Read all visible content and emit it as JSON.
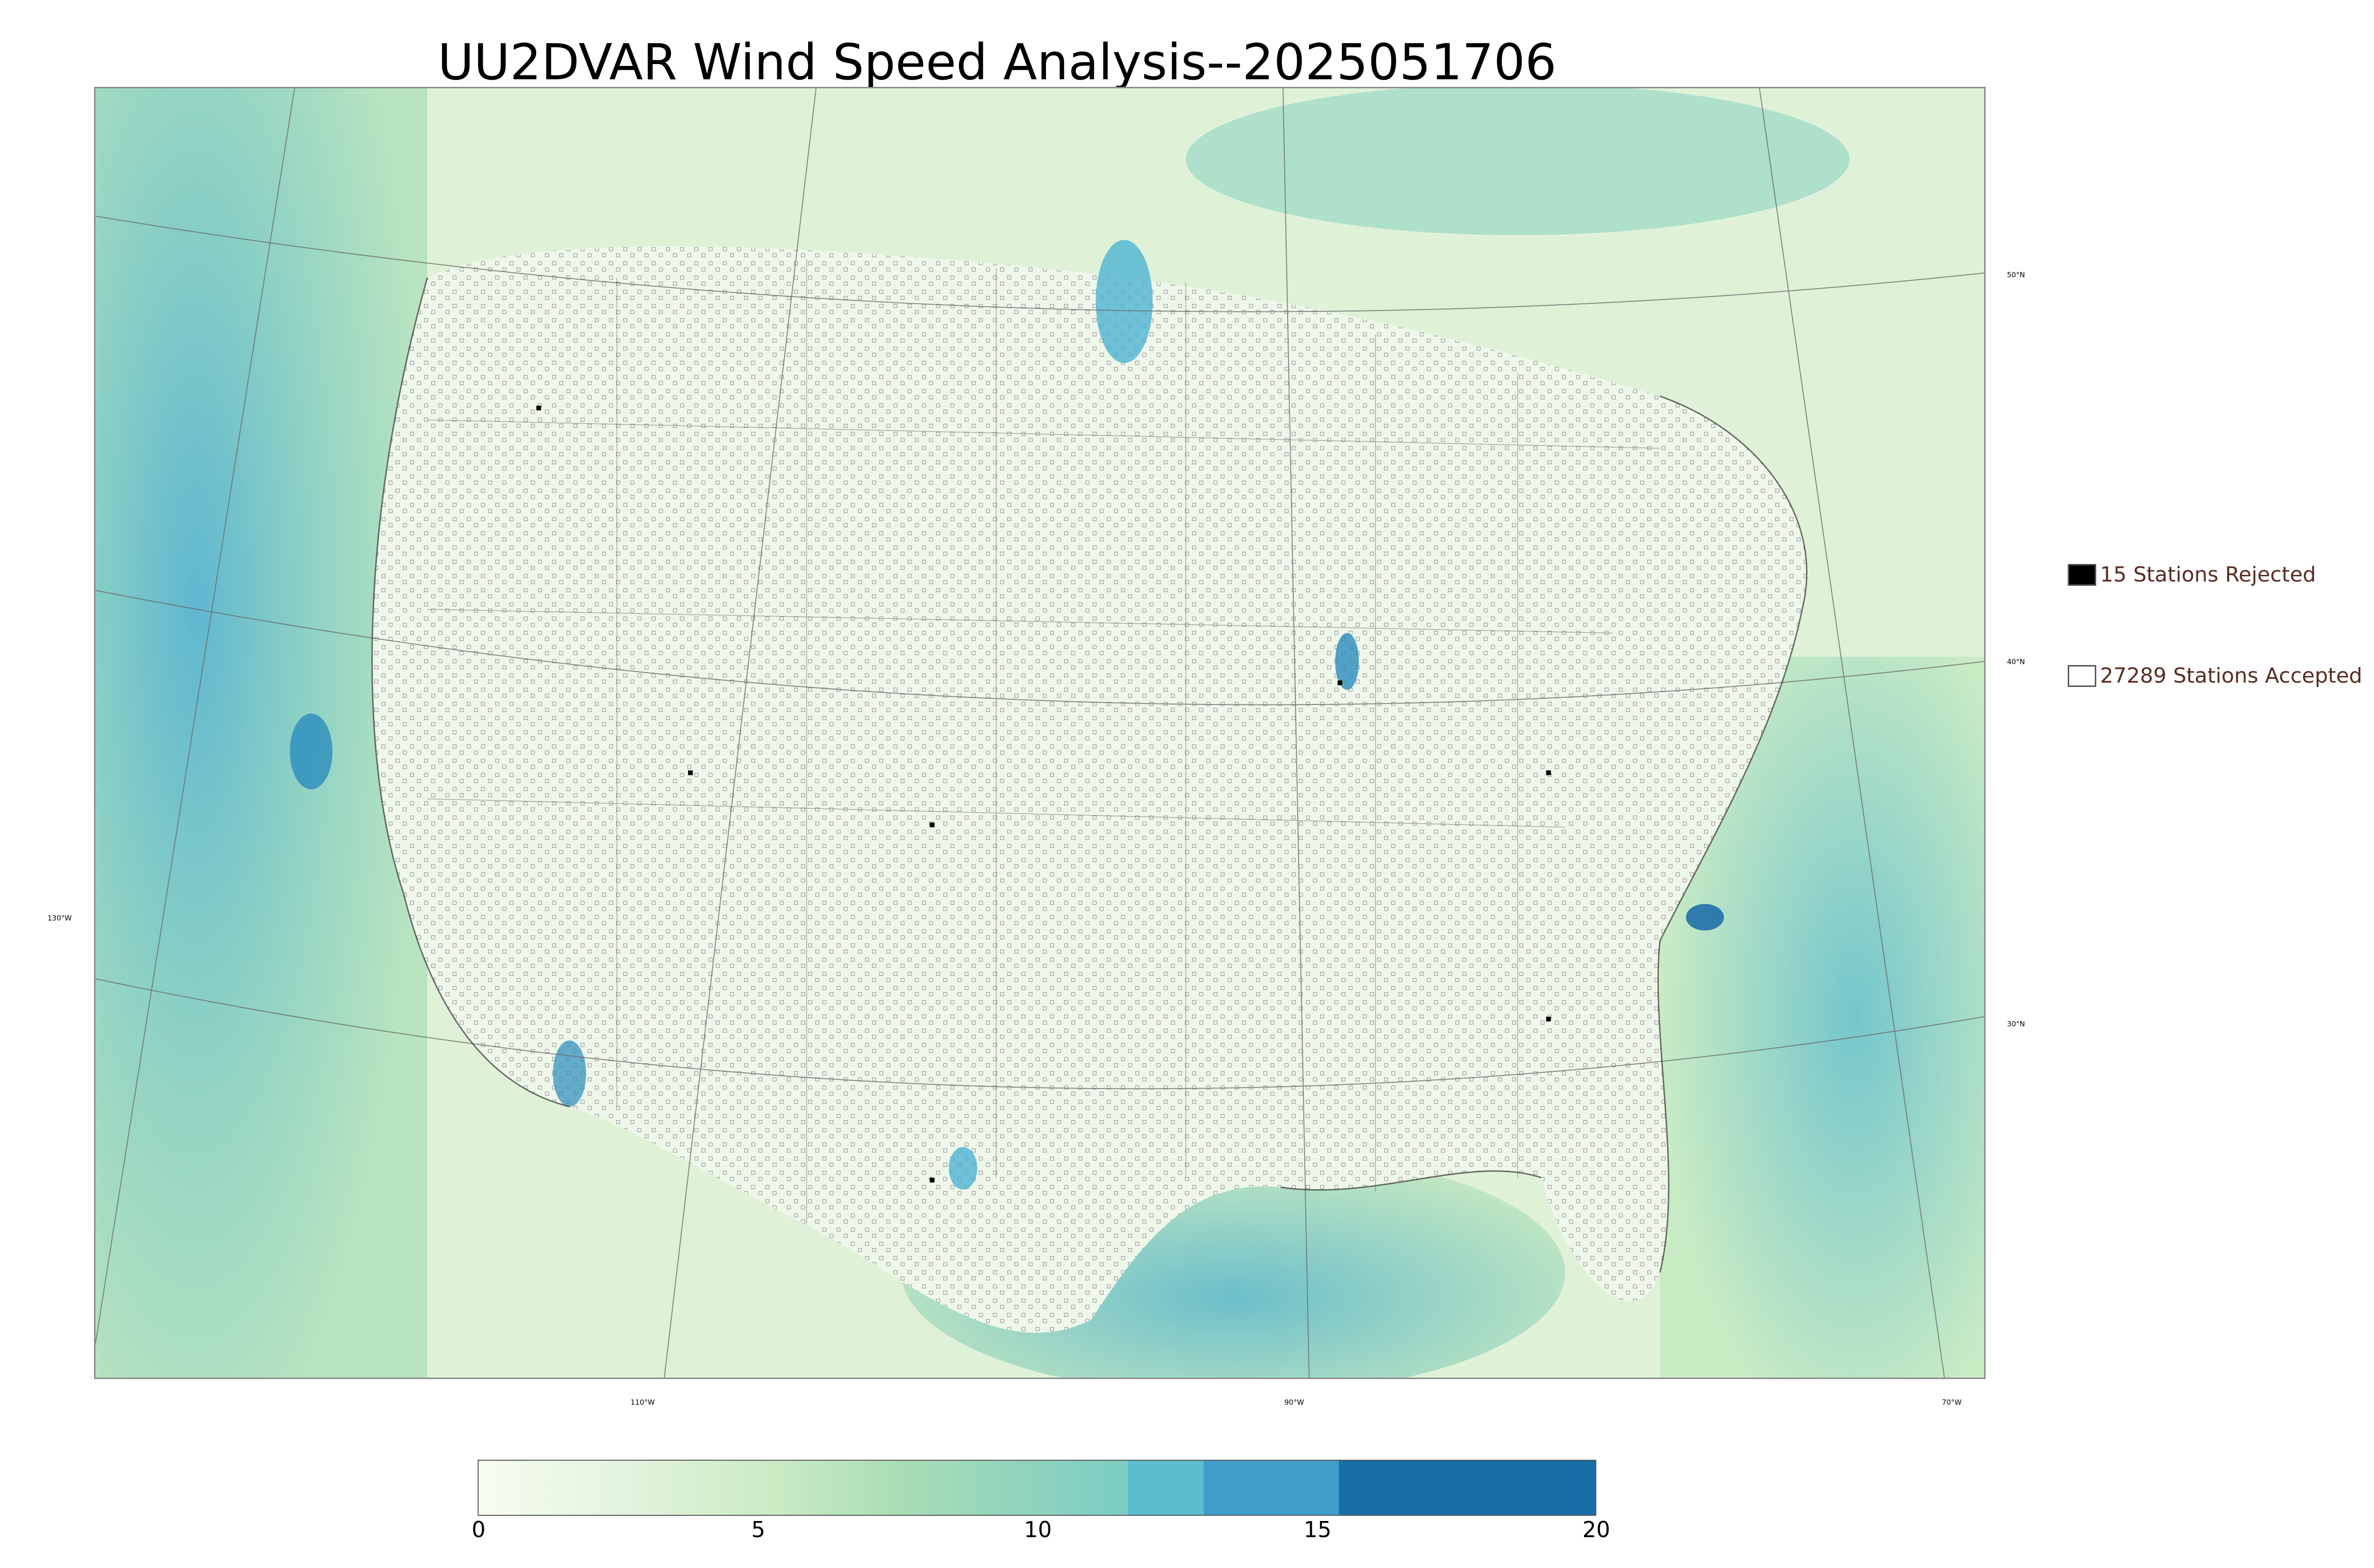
{
  "title": "UU2DVAR Wind Speed Analysis--2025051706",
  "map": {
    "lon_labels": [
      "130°W",
      "110°W",
      "90°W",
      "70°W"
    ],
    "lat_labels": [
      "50°N",
      "40°N",
      "30°N"
    ]
  },
  "legend": {
    "rejected_label": "15 Stations Rejected",
    "accepted_label": "27289 Stations Accepted",
    "rejected_color": "#000000",
    "accepted_color": "#ffffff"
  },
  "colorbar": {
    "min": 0,
    "max": 20,
    "ticks": [
      "0",
      "5",
      "10",
      "15",
      "20"
    ],
    "colors": [
      "#f7fcf0",
      "#e0f3db",
      "#ccebc5",
      "#a8ddb5",
      "#7bccc4",
      "#4eb3d3",
      "#2b8cbe",
      "#08589e"
    ]
  }
}
